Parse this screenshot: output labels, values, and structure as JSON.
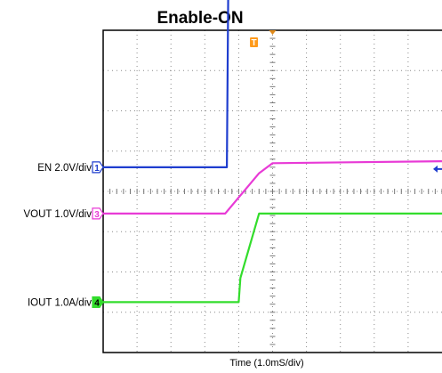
{
  "chart_data": {
    "type": "line",
    "title": "Enable-ON",
    "xlabel": "Time (1.0mS/div)",
    "x_unit": "ms",
    "xlim": [
      0,
      10
    ],
    "grid": true,
    "grid_divisions": {
      "x": 10,
      "y": 8
    },
    "trigger_marker": "T",
    "series": [
      {
        "name": "EN",
        "label": "EN 2.0V/div",
        "channel": "1",
        "scale": "2.0V/div",
        "color": "#1f3ecf",
        "ref_div": 4.6,
        "x": [
          0,
          3.65,
          3.7,
          10
        ],
        "y": [
          0,
          0,
          5.4,
          5.4
        ]
      },
      {
        "name": "VOUT",
        "label": "VOUT 1.0V/div",
        "channel": "3",
        "scale": "1.0V/div",
        "color": "#e83ad6",
        "ref_div": 3.45,
        "x": [
          0,
          3.6,
          4.6,
          5.0,
          10
        ],
        "y": [
          0,
          0,
          1.0,
          1.25,
          1.3
        ]
      },
      {
        "name": "IOUT",
        "label": "IOUT 1.0A/div",
        "channel": "4",
        "scale": "1.0A/div",
        "color": "#33dd2c",
        "ref_div": 1.25,
        "x": [
          0,
          4.0,
          4.05,
          4.6,
          10
        ],
        "y": [
          0,
          0,
          0.6,
          2.2,
          2.2
        ]
      }
    ]
  }
}
